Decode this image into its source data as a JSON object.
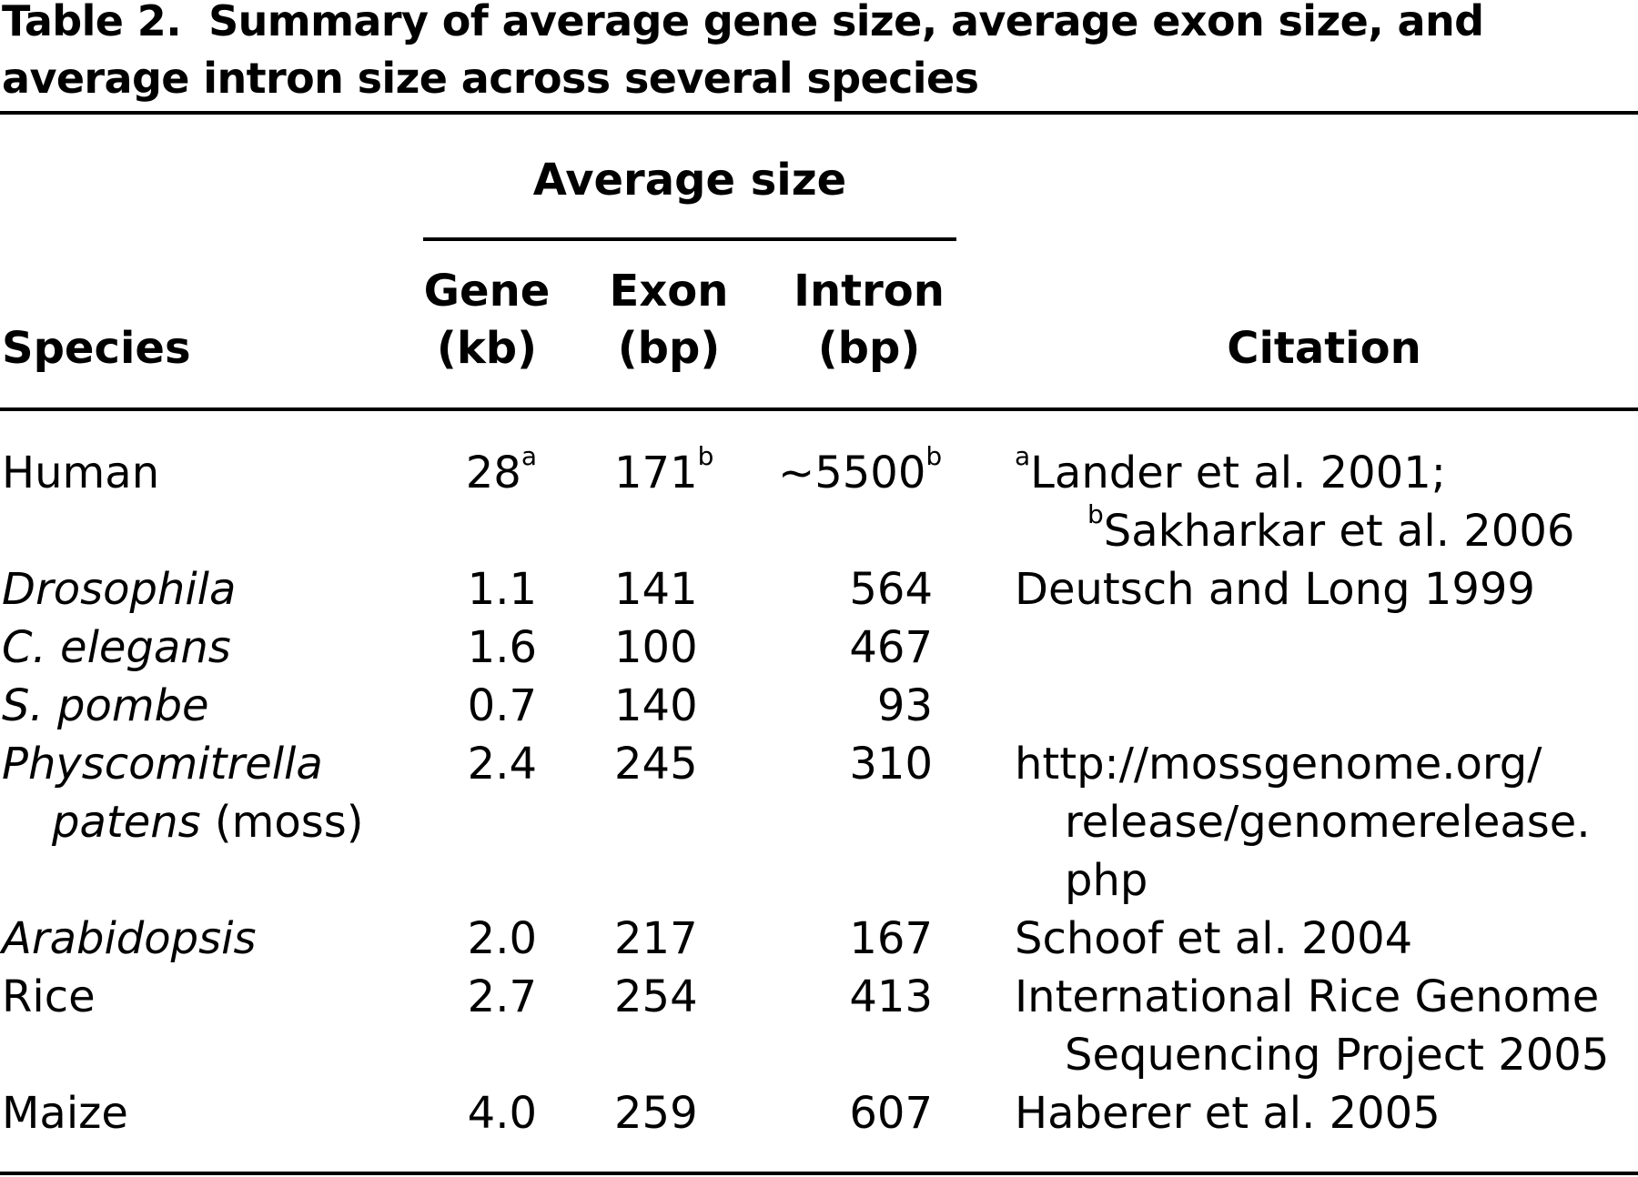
{
  "table": {
    "label": "Table 2.",
    "title_line1": "Summary of average gene size, average exon size, and",
    "title_line2": "average intron size across several species",
    "header": {
      "group": "Average size",
      "species": "Species",
      "gene_line1": "Gene",
      "gene_line2": "(kb)",
      "exon_line1": "Exon",
      "exon_line2": "(bp)",
      "intron_line1": "Intron",
      "intron_line2": "(bp)",
      "citation": "Citation"
    },
    "rows": [
      {
        "species": "Human",
        "gene": "28",
        "gene_sup": "a",
        "exon": "171",
        "exon_sup": "b",
        "intron": "~5500",
        "intron_sup": "b",
        "citation_sup1": "a",
        "citation_line1": "Lander et al. 2001;",
        "citation_sup2": "b",
        "citation_line2": "Sakharkar et al. 2006"
      },
      {
        "species": "Drosophila",
        "gene": "1.1",
        "exon": "141",
        "intron": "564",
        "citation": "Deutsch and Long 1999"
      },
      {
        "species": "C. elegans",
        "gene": "1.6",
        "exon": "100",
        "intron": "467"
      },
      {
        "species": "S. pombe",
        "gene": "0.7",
        "exon": "140",
        "intron": "93"
      },
      {
        "species_line1": "Physcomitrella",
        "species_line2_italic": "patens",
        "species_line2_rest": " (moss)",
        "gene": "2.4",
        "exon": "245",
        "intron": "310",
        "citation_line1": "http://mossgenome.org/",
        "citation_line2": "release/genomerelease.",
        "citation_line3": "php"
      },
      {
        "species": "Arabidopsis",
        "gene": "2.0",
        "exon": "217",
        "intron": "167",
        "citation": "Schoof et al. 2004"
      },
      {
        "species": "Rice",
        "gene": "2.7",
        "exon": "254",
        "intron": "413",
        "citation_line1": "International Rice Genome",
        "citation_line2": "Sequencing Project 2005"
      },
      {
        "species": "Maize",
        "gene": "4.0",
        "exon": "259",
        "intron": "607",
        "citation": "Haberer et al. 2005"
      }
    ]
  }
}
